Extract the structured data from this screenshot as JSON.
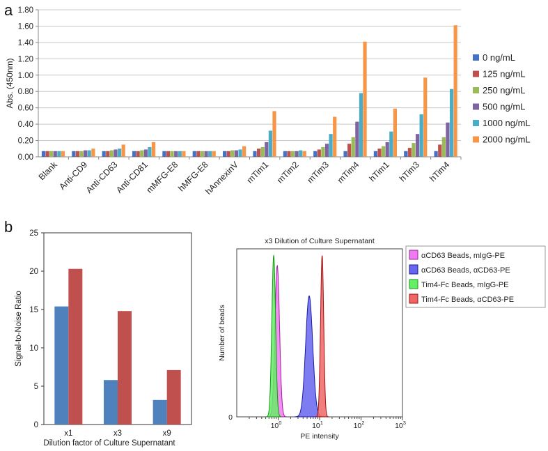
{
  "panels": {
    "a": "a",
    "b": "b"
  },
  "chart_data": [
    {
      "type": "bar",
      "ylabel": "Abs. (450nm)",
      "ylim": [
        0,
        1.8
      ],
      "yticks": [
        "0.00",
        "0.20",
        "0.40",
        "0.60",
        "0.80",
        "1.00",
        "1.20",
        "1.40",
        "1.60",
        "1.80"
      ],
      "categories": [
        "Blank",
        "Anti-CD9",
        "Anti-CD63",
        "Anti-CD81",
        "mMFG-E8",
        "hMFG-E8",
        "hAnnexinV",
        "mTim1",
        "mTim2",
        "mTim3",
        "mTim4",
        "hTim1",
        "hTim3",
        "hTim4"
      ],
      "legend_position": "right",
      "series": [
        {
          "name": "0 ng/mL",
          "color": "#4472C4",
          "values": [
            0.07,
            0.07,
            0.07,
            0.07,
            0.07,
            0.07,
            0.07,
            0.07,
            0.07,
            0.07,
            0.07,
            0.07,
            0.07,
            0.07
          ]
        },
        {
          "name": "125 ng/mL",
          "color": "#C0504D",
          "values": [
            0.07,
            0.07,
            0.07,
            0.07,
            0.07,
            0.07,
            0.07,
            0.1,
            0.07,
            0.09,
            0.16,
            0.1,
            0.11,
            0.15
          ]
        },
        {
          "name": "250 ng/mL",
          "color": "#9BBB59",
          "values": [
            0.07,
            0.07,
            0.08,
            0.08,
            0.07,
            0.07,
            0.08,
            0.12,
            0.07,
            0.12,
            0.24,
            0.13,
            0.17,
            0.24
          ]
        },
        {
          "name": "500 ng/mL",
          "color": "#8064A2",
          "values": [
            0.07,
            0.08,
            0.09,
            0.09,
            0.07,
            0.07,
            0.08,
            0.18,
            0.07,
            0.16,
            0.43,
            0.18,
            0.28,
            0.42
          ]
        },
        {
          "name": "1000 ng/mL",
          "color": "#4BACC6",
          "values": [
            0.07,
            0.08,
            0.1,
            0.12,
            0.07,
            0.07,
            0.09,
            0.32,
            0.08,
            0.28,
            0.78,
            0.31,
            0.52,
            0.83
          ]
        },
        {
          "name": "2000 ng/mL",
          "color": "#F79646",
          "values": [
            0.07,
            0.1,
            0.15,
            0.18,
            0.07,
            0.07,
            0.13,
            0.56,
            0.07,
            0.49,
            1.41,
            0.59,
            0.97,
            1.61
          ]
        }
      ]
    },
    {
      "type": "bar",
      "ylabel": "Signal-to-Noise Ratio",
      "xlabel": "Dilution factor of Culture Supernatant",
      "ylim": [
        0,
        25
      ],
      "yticks": [
        "0",
        "5",
        "10",
        "15",
        "20",
        "25"
      ],
      "categories": [
        "x1",
        "x3",
        "x9"
      ],
      "series": [
        {
          "color": "#4F81BD",
          "values": [
            15.4,
            5.8,
            3.2
          ]
        },
        {
          "color": "#C0504D",
          "values": [
            20.3,
            14.8,
            7.1
          ]
        }
      ]
    },
    {
      "type": "area",
      "title": "x3 Dilution of Culture Supernatant",
      "xlabel": "PE intensity",
      "ylabel": "Number of beads",
      "xscale": "log",
      "xlim": [
        0.1,
        1000
      ],
      "xticks": [
        {
          "value": 1,
          "base": "10",
          "exp": "0"
        },
        {
          "value": 10,
          "base": "10",
          "exp": "1"
        },
        {
          "value": 100,
          "base": "10",
          "exp": "2"
        },
        {
          "value": 1000,
          "base": "10",
          "exp": "3"
        }
      ],
      "yticks": [
        "0"
      ],
      "legend_position": "top-right",
      "series": [
        {
          "name": "αCD63 Beads, mIgG-PE",
          "fill": "#EE7CEE",
          "stroke": "#A020A0",
          "peak_x": 0.95,
          "peak_height": 0.9,
          "width_log": 0.055
        },
        {
          "name": "αCD63 Beads, αCD63-PE",
          "fill": "#6666EE",
          "stroke": "#1A1AA0",
          "peak_x": 5.6,
          "peak_height": 0.72,
          "width_log": 0.085
        },
        {
          "name": "Tim4-Fc Beads, mIgG-PE",
          "fill": "#66EE66",
          "stroke": "#139913",
          "peak_x": 0.78,
          "peak_height": 0.96,
          "width_log": 0.045
        },
        {
          "name": "Tim4-Fc Beads, αCD63-PE",
          "fill": "#EE6666",
          "stroke": "#A01010",
          "peak_x": 11.5,
          "peak_height": 0.96,
          "width_log": 0.038
        }
      ]
    }
  ]
}
